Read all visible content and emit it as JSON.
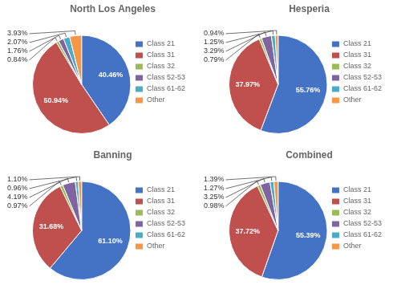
{
  "chart_data": [
    {
      "type": "pie",
      "title": "North Los Angeles",
      "categories": [
        "Class 21",
        "Class 31",
        "Class 32",
        "Class 52-53",
        "Class 61-62",
        "Other"
      ],
      "values": [
        40.46,
        50.94,
        0.84,
        1.76,
        2.07,
        3.93
      ],
      "value_labels": [
        "40.46%",
        "50.94%",
        "0.84%",
        "1.76%",
        "2.07%",
        "3.93%"
      ],
      "colors": [
        "#4472C4",
        "#C0504D",
        "#9BBB59",
        "#8064A2",
        "#4BACC6",
        "#F79646"
      ],
      "data_labels": true,
      "legend": "right"
    },
    {
      "type": "pie",
      "title": "Hesperia",
      "categories": [
        "Class 21",
        "Class 31",
        "Class 32",
        "Class 52-53",
        "Class 61-62",
        "Other"
      ],
      "values": [
        55.76,
        37.97,
        0.79,
        3.29,
        1.25,
        0.94
      ],
      "value_labels": [
        "55.76%",
        "37.97%",
        "0.79%",
        "3.29%",
        "1.25%",
        "0.94%"
      ],
      "colors": [
        "#4472C4",
        "#C0504D",
        "#9BBB59",
        "#8064A2",
        "#4BACC6",
        "#F79646"
      ],
      "data_labels": true,
      "legend": "right"
    },
    {
      "type": "pie",
      "title": "Banning",
      "categories": [
        "Class 21",
        "Class 31",
        "Class 32",
        "Class 52-53",
        "Class 61-62",
        "Other"
      ],
      "values": [
        61.1,
        31.68,
        0.97,
        4.19,
        0.96,
        1.1
      ],
      "value_labels": [
        "61.10%",
        "31.68%",
        "0.97%",
        "4.19%",
        "0.96%",
        "1.10%"
      ],
      "colors": [
        "#4472C4",
        "#C0504D",
        "#9BBB59",
        "#8064A2",
        "#4BACC6",
        "#F79646"
      ],
      "data_labels": true,
      "legend": "right"
    },
    {
      "type": "pie",
      "title": "Combined",
      "categories": [
        "Class 21",
        "Class 31",
        "Class 32",
        "Class 52-53",
        "Class 61-62",
        "Other"
      ],
      "values": [
        55.39,
        37.72,
        0.98,
        3.25,
        1.27,
        1.39
      ],
      "value_labels": [
        "55.39%",
        "37.72%",
        "0.98%",
        "3.25%",
        "1.27%",
        "1.39%"
      ],
      "colors": [
        "#4472C4",
        "#C0504D",
        "#9BBB59",
        "#8064A2",
        "#4BACC6",
        "#F79646"
      ],
      "data_labels": true,
      "legend": "right"
    }
  ]
}
